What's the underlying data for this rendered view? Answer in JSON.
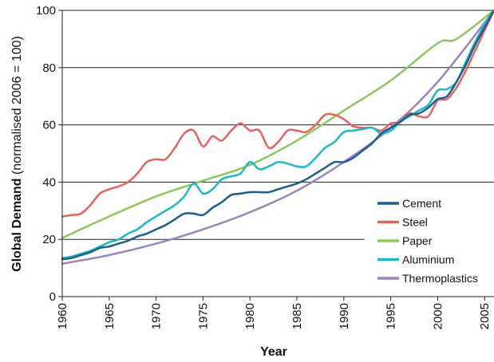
{
  "chart_data": {
    "type": "line",
    "xlabel": "Year",
    "ylabel_bold": "Global Demand",
    "ylabel_rest": " (normalised 2006 = 100)",
    "xlim": [
      1960,
      2006
    ],
    "ylim": [
      0,
      100
    ],
    "x_ticks": [
      "1960",
      "1965",
      "1970",
      "1975",
      "1980",
      "1985",
      "1990",
      "1995",
      "2000",
      "2005"
    ],
    "y_ticks": [
      "0",
      "20",
      "40",
      "60",
      "80",
      "100"
    ],
    "grid": "horizontal",
    "legend_position": "bottom-right",
    "series": [
      {
        "name": "Cement",
        "color": "#1b5e8c",
        "x": [
          1960,
          1961,
          1962,
          1963,
          1964,
          1965,
          1966,
          1967,
          1968,
          1969,
          1970,
          1971,
          1972,
          1973,
          1974,
          1975,
          1976,
          1977,
          1978,
          1979,
          1980,
          1981,
          1982,
          1983,
          1984,
          1985,
          1986,
          1987,
          1988,
          1989,
          1990,
          1991,
          1992,
          1993,
          1994,
          1995,
          1996,
          1997,
          1998,
          1999,
          2000,
          2001,
          2002,
          2003,
          2004,
          2005,
          2006
        ],
        "y": [
          13,
          13.5,
          14.5,
          15.5,
          17,
          17.5,
          18.5,
          19.5,
          21,
          22,
          23.5,
          25,
          27,
          29,
          29,
          28.5,
          31,
          33,
          35.5,
          36,
          36.5,
          36.5,
          36.5,
          37.5,
          38.5,
          39.5,
          41,
          43,
          45,
          47,
          47,
          48.5,
          51,
          53.5,
          57,
          59,
          61,
          63.5,
          64,
          66,
          69,
          70,
          75,
          81,
          88,
          94,
          100
        ]
      },
      {
        "name": "Steel",
        "color": "#e8625c",
        "x": [
          1960,
          1961,
          1962,
          1963,
          1964,
          1965,
          1966,
          1967,
          1968,
          1969,
          1970,
          1971,
          1972,
          1973,
          1974,
          1975,
          1976,
          1977,
          1978,
          1979,
          1980,
          1981,
          1982,
          1983,
          1984,
          1985,
          1986,
          1987,
          1988,
          1989,
          1990,
          1991,
          1992,
          1993,
          1994,
          1995,
          1996,
          1997,
          1998,
          1999,
          2000,
          2001,
          2002,
          2003,
          2004,
          2005,
          2006
        ],
        "y": [
          28,
          28.5,
          29,
          32,
          36,
          37.5,
          38.5,
          40,
          43,
          47,
          48,
          48,
          52,
          57,
          58,
          52.5,
          56,
          54.5,
          58,
          60.5,
          58,
          58,
          52,
          54,
          58,
          58,
          57.5,
          60,
          63.5,
          63.5,
          62,
          59.5,
          59,
          59,
          58,
          60.5,
          61,
          64,
          63,
          63,
          68.5,
          69,
          73,
          79,
          86,
          93,
          100
        ]
      },
      {
        "name": "Paper",
        "color": "#8cc75a",
        "x": [
          1960,
          1965,
          1970,
          1975,
          1980,
          1985,
          1990,
          1995,
          2000,
          2002,
          2006
        ],
        "y": [
          20.5,
          28,
          35,
          40.5,
          46,
          54.5,
          65,
          75.5,
          88.5,
          90,
          100
        ]
      },
      {
        "name": "Aluminium",
        "color": "#1ab8c8",
        "x": [
          1960,
          1961,
          1962,
          1963,
          1964,
          1965,
          1966,
          1967,
          1968,
          1969,
          1970,
          1971,
          1972,
          1973,
          1974,
          1975,
          1976,
          1977,
          1978,
          1979,
          1980,
          1981,
          1982,
          1983,
          1984,
          1985,
          1986,
          1987,
          1988,
          1989,
          1990,
          1991,
          1992,
          1993,
          1994,
          1995,
          1996,
          1997,
          1998,
          1999,
          2000,
          2001,
          2002,
          2003,
          2004,
          2005,
          2006
        ],
        "y": [
          13.5,
          14,
          15,
          16,
          17.5,
          19,
          20,
          22,
          23.5,
          26,
          28,
          30,
          32,
          35,
          39.5,
          36,
          37.5,
          41,
          42,
          43,
          47,
          44.5,
          45.5,
          47,
          46.5,
          45.5,
          45.5,
          48.5,
          52,
          54,
          57.5,
          58,
          58.5,
          59,
          57,
          58,
          61,
          63,
          65,
          67,
          72,
          72.5,
          75,
          82,
          89,
          95,
          100
        ]
      },
      {
        "name": "Thermoplastics",
        "color": "#9b82c0",
        "x": [
          1960,
          1965,
          1970,
          1975,
          1980,
          1985,
          1990,
          1995,
          2000,
          2006
        ],
        "y": [
          11.5,
          14.5,
          18.5,
          23.5,
          29.5,
          37,
          47,
          59,
          75,
          100
        ]
      }
    ]
  }
}
